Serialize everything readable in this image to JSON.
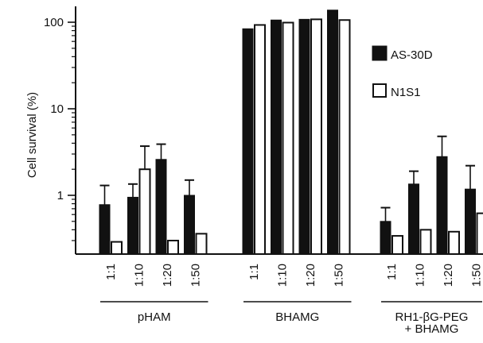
{
  "chart_data": {
    "type": "bar",
    "title": "",
    "ylabel": "Cell survival (%)",
    "xlabel": "",
    "yscale": "log",
    "ylim": [
      0.2,
      150
    ],
    "yticks": [
      {
        "value": 1,
        "label": "1"
      },
      {
        "value": 10,
        "label": "10"
      },
      {
        "value": 100,
        "label": "100"
      }
    ],
    "legend": {
      "placement": "right"
    },
    "series": [
      {
        "name": "AS-30D",
        "color": "#111111",
        "fill": "solid"
      },
      {
        "name": "N1S1",
        "color": "#ffffff",
        "fill": "open"
      }
    ],
    "groups": [
      {
        "label": "pHAM",
        "categories": [
          "1:1",
          "1:10",
          "1:20",
          "1:50"
        ],
        "values": {
          "AS-30D": [
            0.78,
            0.95,
            2.6,
            1.0
          ],
          "N1S1": [
            0.29,
            2.0,
            0.3,
            0.36
          ]
        },
        "error_upper": {
          "AS-30D": [
            1.3,
            1.35,
            3.9,
            1.5
          ],
          "N1S1": [
            null,
            3.7,
            null,
            null
          ]
        }
      },
      {
        "label": "BHAMG",
        "categories": [
          "1:1",
          "1:10",
          "1:20",
          "1:50"
        ],
        "values": {
          "AS-30D": [
            84,
            106,
            108,
            138
          ],
          "N1S1": [
            93,
            99,
            108,
            106
          ]
        },
        "error_upper": {
          "AS-30D": [
            null,
            null,
            null,
            null
          ],
          "N1S1": [
            null,
            null,
            null,
            null
          ]
        }
      },
      {
        "label": "RH1-βG-PEG + BHAMG",
        "label_lines": [
          "RH1-βG-PEG",
          "+ BHAMG"
        ],
        "categories": [
          "1:1",
          "1:10",
          "1:20",
          "1:50"
        ],
        "values": {
          "AS-30D": [
            0.5,
            1.35,
            2.8,
            1.18
          ],
          "N1S1": [
            0.34,
            0.4,
            0.38,
            0.62
          ]
        },
        "error_upper": {
          "AS-30D": [
            0.72,
            1.9,
            4.8,
            2.2
          ],
          "N1S1": [
            null,
            null,
            null,
            null
          ]
        }
      }
    ]
  }
}
